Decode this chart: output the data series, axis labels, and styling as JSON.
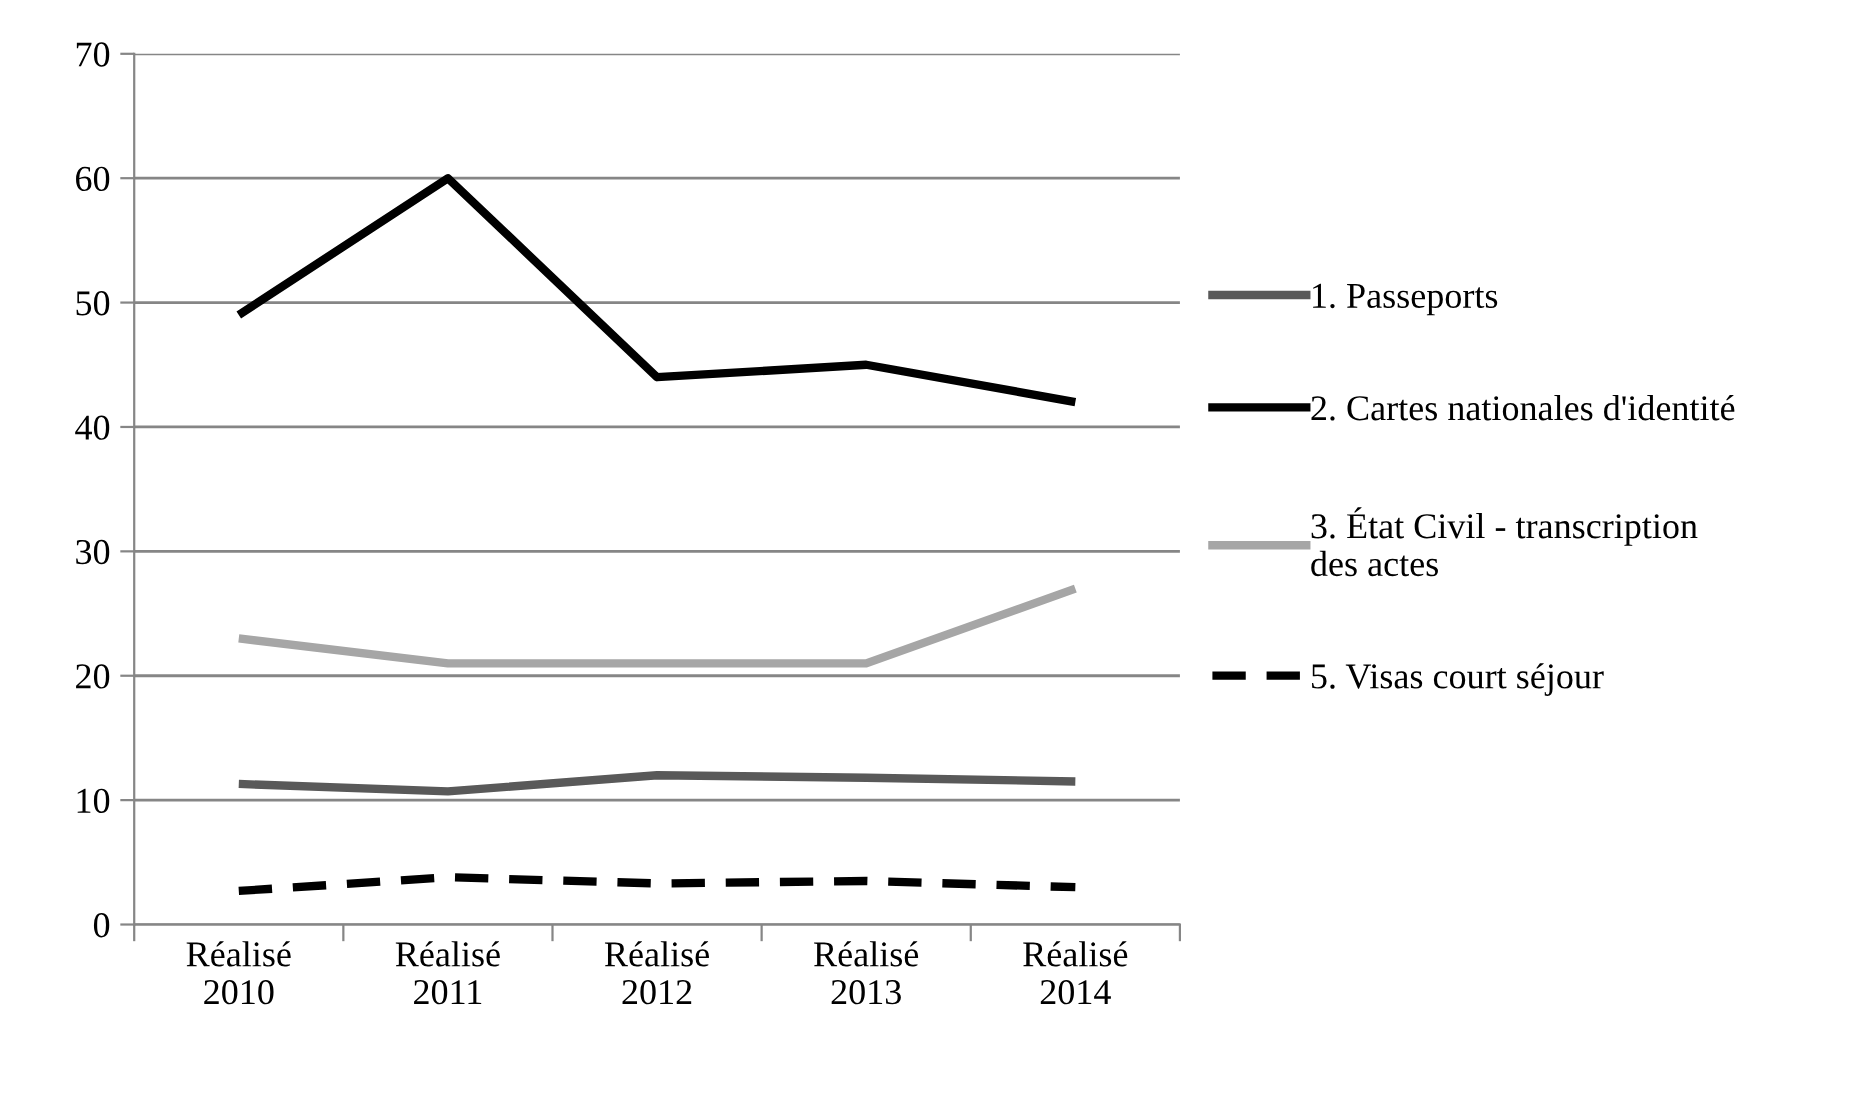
{
  "chart_data": {
    "type": "line",
    "categories": [
      "Réalisé 2010",
      "Réalisé 2011",
      "Réalisé 2012",
      "Réalisé 2013",
      "Réalisé 2014"
    ],
    "series": [
      {
        "name": "1. Passeports",
        "color": "#595959",
        "values": [
          11.3,
          10.7,
          12,
          11.8,
          11.5
        ]
      },
      {
        "name": "2. Cartes nationales d'identité",
        "color": "#000000",
        "values": [
          49,
          60,
          44,
          45,
          42
        ]
      },
      {
        "name": "3. État Civil - transcription des actes",
        "color": "#a6a6a6",
        "values": [
          23,
          21,
          21,
          21,
          27
        ]
      },
      {
        "name": "5. Visas court séjour",
        "color": "#000000",
        "values": [
          2.7,
          3.8,
          3.3,
          3.5,
          3
        ],
        "line_style": "dashed"
      }
    ],
    "ylim": [
      0,
      70
    ],
    "yticks": [
      0,
      10,
      20,
      30,
      40,
      50,
      60,
      70
    ],
    "grid": "y",
    "legend": "right",
    "marker": "none"
  }
}
